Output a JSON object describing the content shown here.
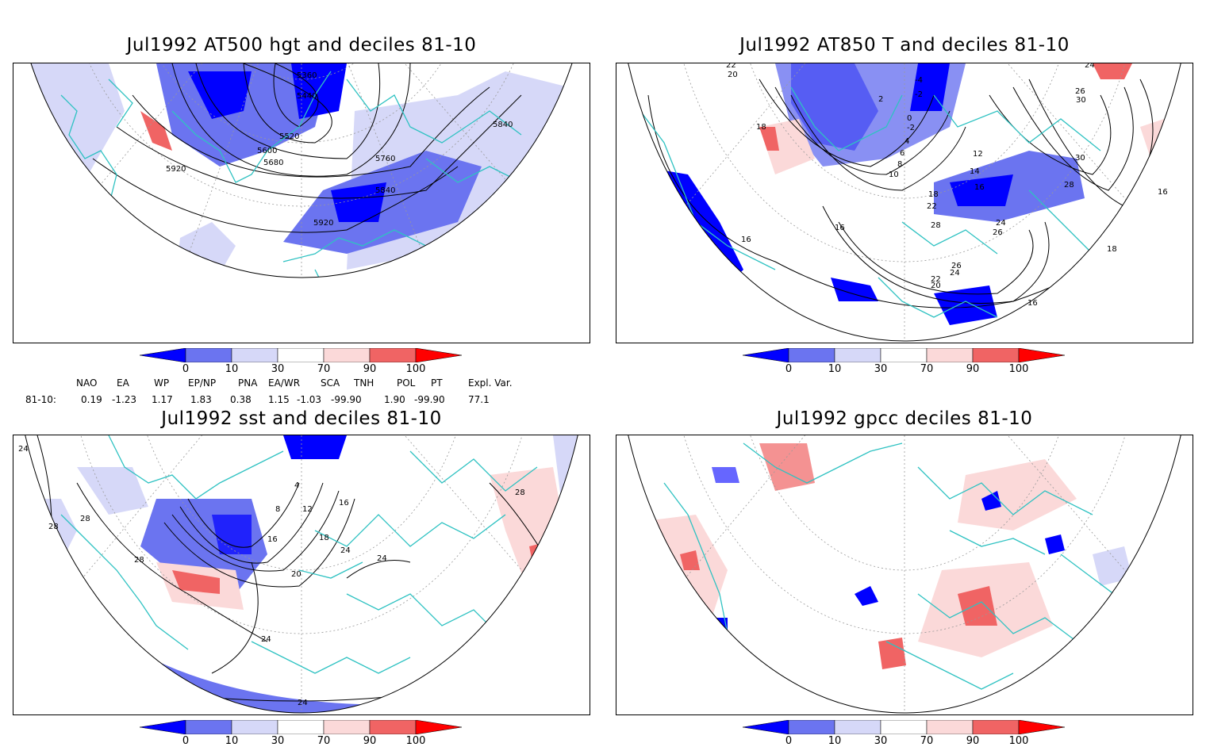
{
  "panels": [
    {
      "title": "Jul1992 AT500 hgt and deciles 81-10",
      "contour_labels": [
        "5360",
        "5440",
        "5520",
        "5600",
        "5680",
        "5760",
        "5840",
        "5920",
        "5840",
        "5920"
      ]
    },
    {
      "title": "Jul1992 AT850 T and deciles 81-10",
      "contour_labels": [
        "22",
        "20",
        "18",
        "16",
        "-4",
        "-2",
        "2",
        "0",
        "-2",
        "4",
        "6",
        "8",
        "10",
        "12",
        "14",
        "16",
        "18",
        "22",
        "24",
        "26",
        "28",
        "30",
        "28",
        "26",
        "24",
        "22",
        "20",
        "16",
        "16",
        "18",
        "16",
        "24",
        "26",
        "30"
      ]
    },
    {
      "title": "Jul1992 sst and deciles 81-10",
      "contour_labels": [
        "24",
        "28",
        "28",
        "16",
        "20",
        "24",
        "28",
        "24",
        "4",
        "8",
        "12",
        "16",
        "18",
        "24",
        "24",
        "28"
      ]
    },
    {
      "title": "Jul1992 gpcc deciles 81-10",
      "contour_labels": []
    }
  ],
  "colorbar": {
    "ticks": [
      "0",
      "10",
      "30",
      "70",
      "90",
      "100"
    ],
    "colors": [
      "#0000ff",
      "#6b74f0",
      "#d6d8f8",
      "#ffffff",
      "#fbd9d9",
      "#f06464",
      "#ff0000"
    ]
  },
  "indices": {
    "headers": [
      "NAO",
      "EA",
      "WP",
      "EP/NP",
      "PNA",
      "EA/WR",
      "SCA",
      "TNH",
      "POL",
      "PT",
      "Expl. Var."
    ],
    "row_label": "81-10:",
    "values": [
      "0.19",
      "-1.23",
      "1.17",
      "1.83",
      "0.38",
      "1.15",
      "-1.03",
      "-99.90",
      "1.90",
      "-99.90",
      "77.1"
    ]
  },
  "colors": {
    "coastline": "#2fc2c2",
    "contour": "#000000",
    "grid": "#999999"
  }
}
